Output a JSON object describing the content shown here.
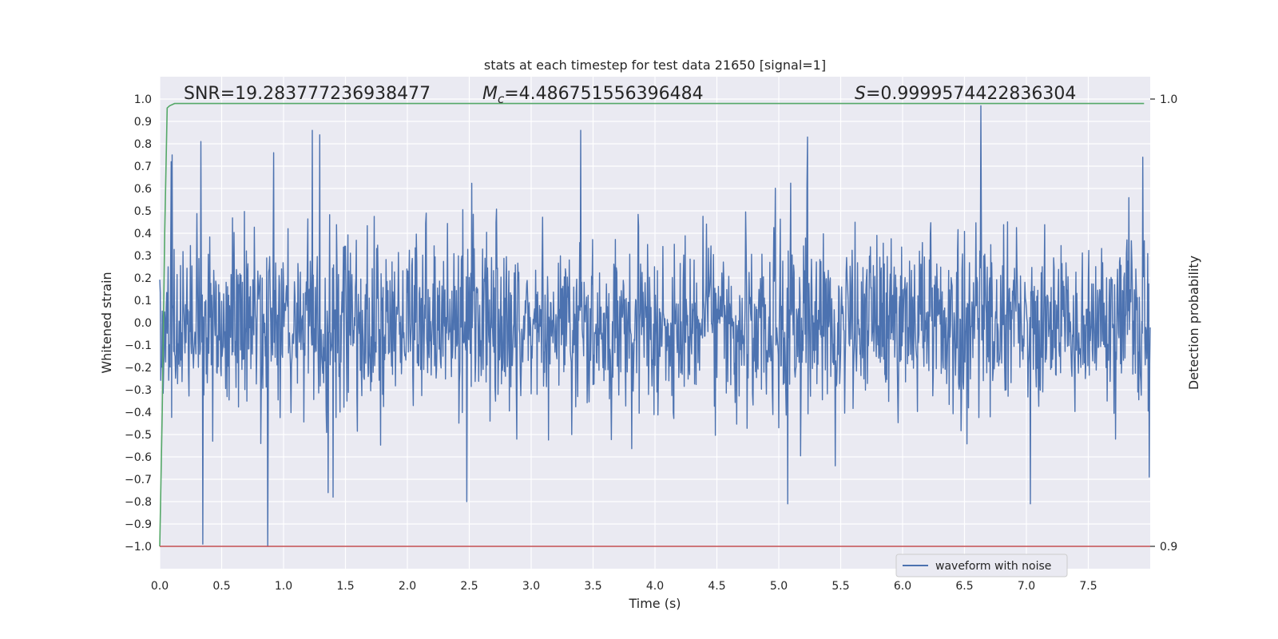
{
  "chart_data": {
    "type": "line",
    "title": "stats at each timestep for test data 21650 [signal=1]",
    "xlabel": "Time (s)",
    "ylabel": "Whitened strain",
    "y2label": "Detection probability",
    "xlim": [
      0.0,
      8.0
    ],
    "ylim": [
      -1.1,
      1.1
    ],
    "y2lim": [
      0.9,
      1.0
    ],
    "x_ticks": [
      0.0,
      0.5,
      1.0,
      1.5,
      2.0,
      2.5,
      3.0,
      3.5,
      4.0,
      4.5,
      5.0,
      5.5,
      6.0,
      6.5,
      7.0,
      7.5
    ],
    "x_tick_labels": [
      "0.0",
      "0.5",
      "1.0",
      "1.5",
      "2.0",
      "2.5",
      "3.0",
      "3.5",
      "4.0",
      "4.5",
      "5.0",
      "5.5",
      "6.0",
      "6.5",
      "7.0",
      "7.5"
    ],
    "y_ticks": [
      1.0,
      0.9,
      0.8,
      0.7,
      0.6,
      0.5,
      0.4,
      0.3,
      0.2,
      0.1,
      0.0,
      -0.1,
      -0.2,
      -0.3,
      -0.4,
      -0.5,
      -0.6,
      -0.7,
      -0.8,
      -0.9,
      -1.0
    ],
    "y_tick_labels": [
      "1.0",
      "0.9",
      "0.8",
      "0.7",
      "0.6",
      "0.5",
      "0.4",
      "0.3",
      "0.2",
      "0.1",
      "0.0",
      "−0.1",
      "−0.2",
      "−0.3",
      "−0.4",
      "−0.5",
      "−0.6",
      "−0.7",
      "−0.8",
      "−0.9",
      "−1.0"
    ],
    "y2_ticks": [
      1.0,
      0.9
    ],
    "y2_tick_labels": [
      "1.0",
      "0.9"
    ],
    "grid": true,
    "legend": {
      "placement": "lower-right",
      "entries": [
        "waveform with noise"
      ]
    },
    "annotations": {
      "snr": "SNR=19.283777236938477",
      "mc_symbol": "M",
      "mc_sub": "c",
      "mc_value": "=4.486751556396484",
      "s_symbol": "S",
      "s_value": "=0.9999574422836304"
    },
    "series": [
      {
        "name": "waveform with noise",
        "axis": "left",
        "color": "#4c72b0",
        "sample_interval": 0.004,
        "noise_band_sigma": 0.2,
        "extrema": [
          {
            "x": 0.09,
            "y": 0.72
          },
          {
            "x": 0.1,
            "y": 0.75
          },
          {
            "x": 0.33,
            "y": 0.81
          },
          {
            "x": 0.35,
            "y": -0.99
          },
          {
            "x": 0.87,
            "y": -1.0
          },
          {
            "x": 0.92,
            "y": 0.76
          },
          {
            "x": 1.23,
            "y": 0.86
          },
          {
            "x": 1.29,
            "y": 0.84
          },
          {
            "x": 1.36,
            "y": -0.76
          },
          {
            "x": 1.4,
            "y": -0.78
          },
          {
            "x": 2.48,
            "y": -0.8
          },
          {
            "x": 3.4,
            "y": 0.86
          },
          {
            "x": 5.07,
            "y": -0.81
          },
          {
            "x": 5.23,
            "y": 0.83
          },
          {
            "x": 6.63,
            "y": 0.97
          },
          {
            "x": 7.03,
            "y": -0.81
          },
          {
            "x": 7.94,
            "y": 0.74
          },
          {
            "x": 7.99,
            "y": -0.69
          }
        ]
      },
      {
        "name": "",
        "axis": "right",
        "color": "#55a868",
        "x": [
          0.0,
          0.02,
          0.04,
          0.06,
          0.08,
          0.12,
          7.95
        ],
        "y": [
          0.9,
          0.93,
          0.97,
          0.998,
          0.9985,
          0.999,
          0.999
        ]
      },
      {
        "name": "",
        "axis": "right",
        "color": "#c44e52",
        "x": [
          0.0,
          8.0
        ],
        "y": [
          0.9,
          0.9
        ]
      }
    ]
  },
  "colors": {
    "plot_background": "#eaeaf2",
    "grid": "#ffffff",
    "text": "#262626"
  }
}
